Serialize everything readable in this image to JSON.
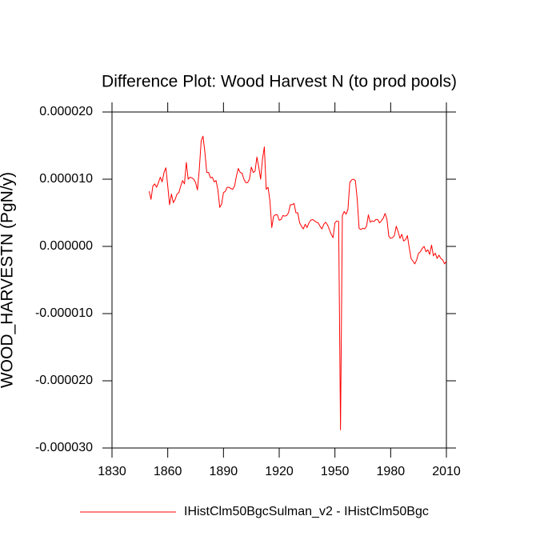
{
  "chart_data": {
    "type": "line",
    "title": "Difference Plot: Wood Harvest N (to prod pools)",
    "ylabel": "WOOD_HARVESTN  (PgN/y)",
    "x": [
      1850,
      1851,
      1852,
      1853,
      1854,
      1855,
      1856,
      1857,
      1858,
      1859,
      1860,
      1861,
      1862,
      1863,
      1864,
      1865,
      1866,
      1867,
      1868,
      1869,
      1870,
      1871,
      1872,
      1873,
      1874,
      1875,
      1876,
      1877,
      1878,
      1879,
      1880,
      1881,
      1882,
      1883,
      1884,
      1885,
      1886,
      1887,
      1888,
      1889,
      1890,
      1891,
      1892,
      1893,
      1894,
      1895,
      1896,
      1897,
      1898,
      1899,
      1900,
      1901,
      1902,
      1903,
      1904,
      1905,
      1906,
      1907,
      1908,
      1909,
      1910,
      1911,
      1912,
      1913,
      1914,
      1915,
      1916,
      1917,
      1918,
      1919,
      1920,
      1921,
      1922,
      1923,
      1924,
      1925,
      1926,
      1927,
      1928,
      1929,
      1930,
      1931,
      1932,
      1933,
      1934,
      1935,
      1936,
      1937,
      1938,
      1939,
      1940,
      1941,
      1942,
      1943,
      1944,
      1945,
      1946,
      1947,
      1948,
      1949,
      1950,
      1951,
      1952,
      1953,
      1954,
      1955,
      1956,
      1957,
      1958,
      1959,
      1960,
      1961,
      1962,
      1963,
      1964,
      1965,
      1966,
      1967,
      1968,
      1969,
      1970,
      1971,
      1972,
      1973,
      1974,
      1975,
      1976,
      1977,
      1978,
      1979,
      1980,
      1981,
      1982,
      1983,
      1984,
      1985,
      1986,
      1987,
      1988,
      1989,
      1990,
      1991,
      1992,
      1993,
      1994,
      1995,
      1996,
      1997,
      1998,
      1999,
      2000,
      2001,
      2002,
      2003,
      2004,
      2005,
      2006,
      2007,
      2008,
      2009,
      2010
    ],
    "series": [
      {
        "name": "IHistClm50BgcSulman_v2 - IHistClm50Bgc",
        "color": "#ff0000",
        "values": [
          8.2e-06,
          7e-06,
          9e-06,
          9.3e-06,
          8.8e-06,
          9.5e-06,
          1.03e-05,
          9.6e-06,
          1.1e-05,
          1.17e-05,
          9e-06,
          6.2e-06,
          7.8e-06,
          6.5e-06,
          7e-06,
          7.8e-06,
          8e-06,
          9e-06,
          9.8e-06,
          9.3e-06,
          1.25e-05,
          1e-05,
          1.03e-05,
          1.02e-05,
          1e-05,
          9.5e-06,
          8.4e-06,
          1.15e-05,
          1.57e-05,
          1.64e-05,
          1.4e-05,
          1.1e-05,
          1.1e-05,
          1.02e-05,
          1.03e-05,
          9.6e-06,
          9.8e-06,
          8.4e-06,
          5.8e-06,
          6.3e-06,
          8e-06,
          8.2e-06,
          8.8e-06,
          8.8e-06,
          8.6e-06,
          8.5e-06,
          9e-06,
          1.05e-05,
          1.16e-05,
          1.1e-05,
          1.09e-05,
          1e-05,
          9.5e-06,
          9.5e-06,
          1e-05,
          1.18e-05,
          1.1e-05,
          1.12e-05,
          1.33e-05,
          1.18e-05,
          1e-05,
          1.3e-05,
          1.48e-05,
          8.5e-06,
          8.8e-06,
          6.8e-06,
          2.8e-06,
          4.5e-06,
          4.7e-06,
          4.7e-06,
          3.9e-06,
          4e-06,
          4.6e-06,
          4.5e-06,
          4.6e-06,
          5e-06,
          6.2e-06,
          6.2e-06,
          6.4e-06,
          5e-06,
          5e-06,
          3.5e-06,
          3e-06,
          2.6e-06,
          3.3e-06,
          2.8e-06,
          3.5e-06,
          3.9e-06,
          4e-06,
          3.8e-06,
          3.6e-06,
          3.5e-06,
          3e-06,
          2.6e-06,
          3.3e-06,
          3.6e-06,
          3.2e-06,
          2.5e-06,
          1.8e-06,
          1.3e-06,
          3.5e-06,
          3.8e-06,
          3.7e-06,
          -2.73e-05,
          4.6e-06,
          5.2e-06,
          4.8e-06,
          5.5e-06,
          9.5e-06,
          9.9e-06,
          1e-05,
          9.8e-06,
          7e-06,
          2.7e-06,
          2.5e-06,
          2.7e-06,
          2.6e-06,
          3e-06,
          4.7e-06,
          3.6e-06,
          3.8e-06,
          3.7e-06,
          4e-06,
          4e-06,
          3.5e-06,
          3.8e-06,
          4.2e-06,
          4.9e-06,
          4e-06,
          1.5e-06,
          1.2e-06,
          1.3e-06,
          1.6e-06,
          3e-06,
          2.2e-06,
          1.2e-06,
          1.8e-06,
          8e-07,
          1e-06,
          1.6e-06,
          -2e-07,
          -1.8e-06,
          -2.2e-06,
          -2.6e-06,
          -2e-06,
          -1e-06,
          -8e-07,
          -3e-07,
          0.0,
          -8e-07,
          -5e-07,
          -1.2e-06,
          2e-07,
          -1.4e-06,
          -1e-06,
          -1.8e-06,
          -1.3e-06,
          -1.8e-06,
          -2e-06,
          -2.6e-06,
          -2.2e-06
        ]
      }
    ],
    "xlim": [
      1830,
      2010
    ],
    "xticks": [
      1830,
      1860,
      1890,
      1920,
      1950,
      1980,
      2010
    ],
    "ylim": [
      -3e-05,
      2e-05
    ],
    "yticks": [
      {
        "value": 2e-05,
        "label": "0.000020"
      },
      {
        "value": 1e-05,
        "label": "0.000010"
      },
      {
        "value": 0,
        "label": "0.000000"
      },
      {
        "value": -1e-05,
        "label": "-0.000010"
      },
      {
        "value": -2e-05,
        "label": "-0.000020"
      },
      {
        "value": -3e-05,
        "label": "-0.000030"
      }
    ],
    "legend": "bottom"
  }
}
